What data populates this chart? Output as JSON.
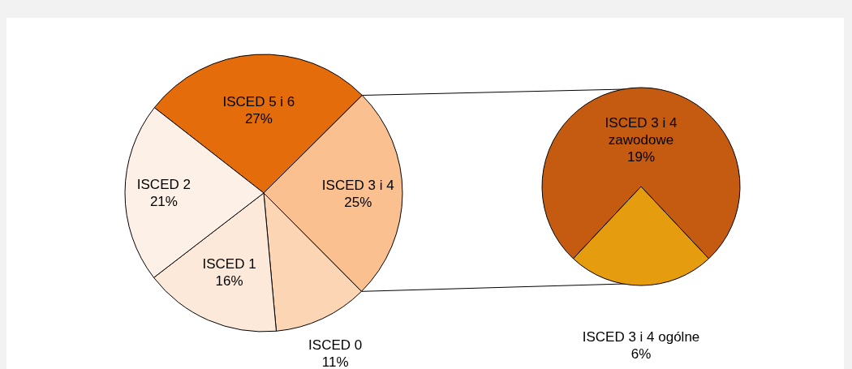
{
  "chart_data": [
    {
      "type": "pie",
      "categories": [
        "ISCED 5 i 6",
        "ISCED 3 i 4",
        "ISCED 0",
        "ISCED 1",
        "ISCED 2"
      ],
      "values": [
        27,
        25,
        11,
        16,
        21
      ],
      "colors": [
        "#e46c0a",
        "#fac090",
        "#fcd5b5",
        "#fde9d9",
        "#fdf0e6"
      ],
      "value_labels": [
        "27%",
        "25%",
        "11%",
        "16%",
        "21%"
      ]
    },
    {
      "type": "pie",
      "categories": [
        "ISCED 3 i 4 zawodowe",
        "ISCED 3 i 4 ogólne"
      ],
      "values": [
        19,
        6
      ],
      "colors": [
        "#c55a11",
        "#e59c0e"
      ],
      "value_labels": [
        "19%",
        "6%"
      ]
    }
  ]
}
